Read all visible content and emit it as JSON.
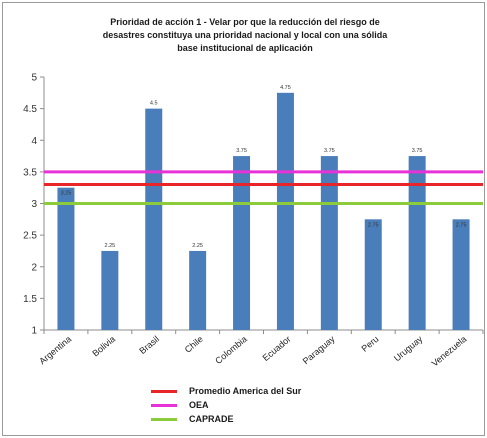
{
  "chart_data": {
    "type": "bar",
    "title_lines": [
      "Prioridad de acción 1 - Velar por que la reducción del riesgo de",
      "desastres constituya una prioridad nacional y local con una sólida",
      "base institucional de aplicación"
    ],
    "categories": [
      "Argentina",
      "Bolivia",
      "Brasil",
      "Chile",
      "Colombia",
      "Ecuador",
      "Paraguay",
      "Peru",
      "Uruguay",
      "Venezuela"
    ],
    "values": [
      3.25,
      2.25,
      4.5,
      2.25,
      3.75,
      4.75,
      3.75,
      2.75,
      3.75,
      2.75
    ],
    "data_labels": [
      "3.25",
      "2.25",
      "4.5",
      "2.25",
      "3.75",
      "4.75",
      "3.75",
      "2.75",
      "3.75",
      "2.75"
    ],
    "bar_color": "#4a7ebb",
    "ylim": [
      1,
      5
    ],
    "yticks": [
      "1",
      "1.5",
      "2",
      "2.5",
      "3",
      "3.5",
      "4",
      "4.5",
      "5"
    ],
    "grid": false,
    "reference_lines": [
      {
        "name": "Promedio America del Sur",
        "value": 3.3,
        "color": "#e8262a"
      },
      {
        "name": "OEA",
        "value": 3.5,
        "color": "#e632d6"
      },
      {
        "name": "CAPRADE",
        "value": 3.0,
        "color": "#8ccc3c"
      }
    ],
    "legend_position": "bottom"
  }
}
